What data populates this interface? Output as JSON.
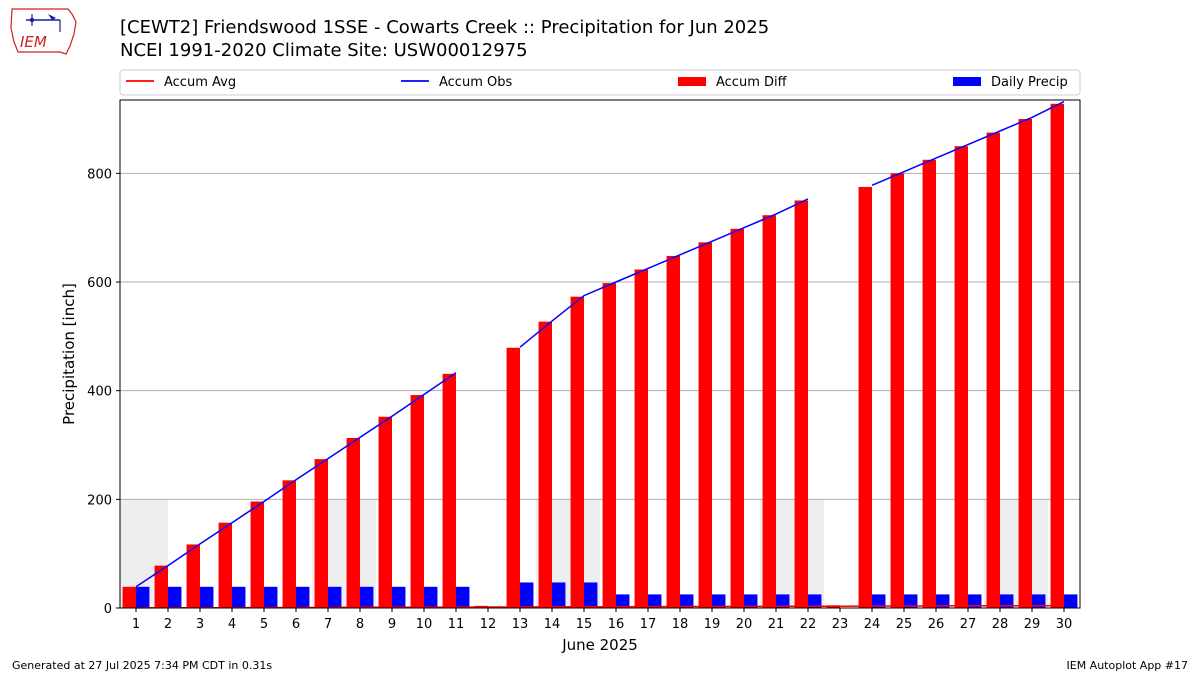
{
  "header": {
    "title_line1": "[CEWT2] Friendswood 1SSE - Cowarts Creek :: Precipitation for Jun 2025",
    "title_line2": "NCEI 1991-2020 Climate Site: USW00012975",
    "logo_text": "IEM"
  },
  "footer": {
    "generated": "Generated at 27 Jul 2025 7:34 PM CDT in 0.31s",
    "app": "IEM Autoplot App #17"
  },
  "colors": {
    "accum_avg": "#ff0000",
    "accum_obs": "#0000ff",
    "accum_diff": "#ff0000",
    "daily_precip": "#0000ff",
    "weekend_shade": "#eeeeee",
    "grid": "#b0b0b0"
  },
  "chart_data": {
    "type": "bar",
    "title": "[CEWT2] Friendswood 1SSE - Cowarts Creek :: Precipitation for Jun 2025",
    "xlabel": "June 2025",
    "ylabel": "Precipitation [inch]",
    "ylim": [
      0,
      935
    ],
    "yticks": [
      0,
      200,
      400,
      600,
      800
    ],
    "categories": [
      "1",
      "2",
      "3",
      "4",
      "5",
      "6",
      "7",
      "8",
      "9",
      "10",
      "11",
      "12",
      "13",
      "14",
      "15",
      "16",
      "17",
      "18",
      "19",
      "20",
      "21",
      "22",
      "23",
      "24",
      "25",
      "26",
      "27",
      "28",
      "29",
      "30"
    ],
    "legend_position": "top",
    "weekend_shade_days": [
      [
        1,
        1.5
      ],
      [
        7,
        8
      ],
      [
        14,
        15
      ],
      [
        21,
        22
      ],
      [
        28,
        29
      ]
    ],
    "series": [
      {
        "name": "Accum Avg",
        "kind": "line",
        "values": [
          0.1,
          0.3,
          0.4,
          0.6,
          0.7,
          0.9,
          1.0,
          1.2,
          1.3,
          1.5,
          1.6,
          1.8,
          1.9,
          2.1,
          2.2,
          2.4,
          2.5,
          2.7,
          2.8,
          3.0,
          3.1,
          3.3,
          3.4,
          3.6,
          3.7,
          3.9,
          4.0,
          4.2,
          4.3,
          4.5
        ]
      },
      {
        "name": "Accum Obs",
        "kind": "line",
        "values": [
          39,
          78,
          118,
          157,
          196,
          236,
          275,
          314,
          353,
          393,
          433,
          null,
          480,
          528,
          575,
          600,
          625,
          650,
          675,
          700,
          725,
          753,
          null,
          778,
          803,
          828,
          853,
          878,
          903,
          932
        ]
      },
      {
        "name": "Accum Diff",
        "kind": "bar",
        "values": [
          39,
          78,
          117,
          157,
          196,
          235,
          274,
          313,
          352,
          392,
          431,
          4,
          479,
          527,
          573,
          598,
          623,
          648,
          673,
          698,
          723,
          750,
          5,
          775,
          800,
          825,
          850,
          875,
          900,
          928
        ]
      },
      {
        "name": "Daily Precip",
        "kind": "bar",
        "values": [
          39,
          39,
          39,
          39,
          39,
          39,
          39,
          39,
          39,
          39,
          39,
          0,
          47,
          47,
          47,
          25,
          25,
          25,
          25,
          25,
          25,
          25,
          0,
          25,
          25,
          25,
          25,
          25,
          25,
          25
        ]
      }
    ]
  }
}
